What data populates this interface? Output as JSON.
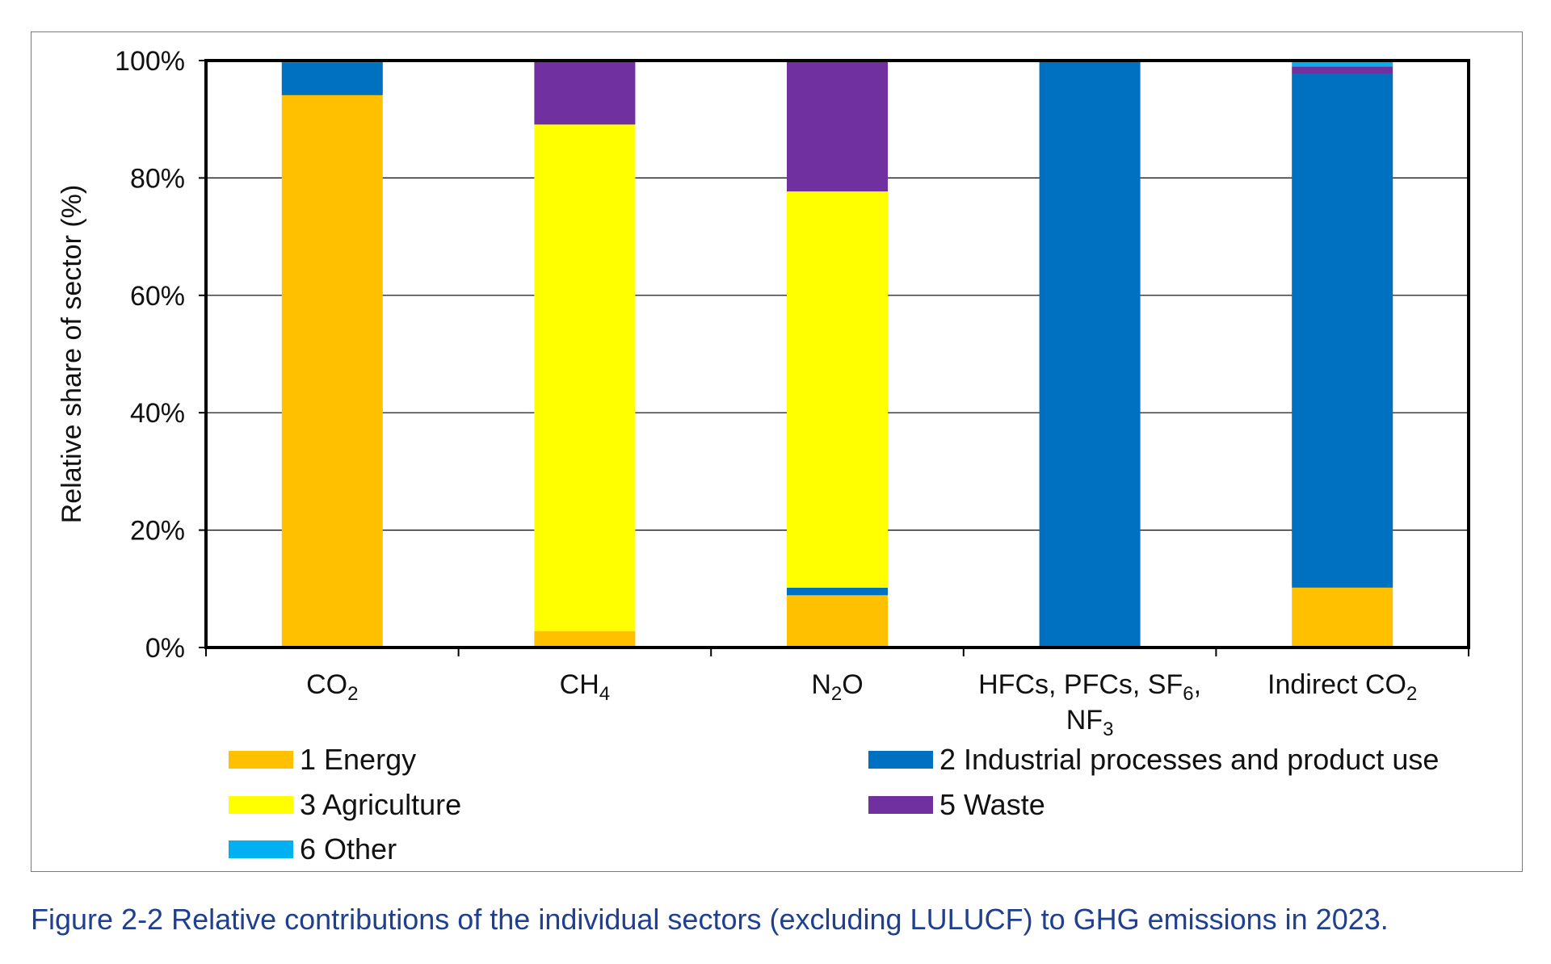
{
  "caption": "Figure 2-2 Relative contributions of the individual sectors (excluding LULUCF) to GHG emissions in 2023.",
  "chart_data": {
    "type": "bar",
    "stacked": true,
    "ylabel": "Relative share of sector (%)",
    "ylim": [
      0,
      100
    ],
    "yticks": [
      "0%",
      "20%",
      "40%",
      "60%",
      "80%",
      "100%"
    ],
    "grid": true,
    "legend_position": "bottom",
    "categories": [
      {
        "base": "CO",
        "sub": "2"
      },
      {
        "base": "CH",
        "sub": "4"
      },
      {
        "base": "N",
        "sub": "2",
        "tail": "O"
      },
      {
        "base": "HFCs, PFCs, SF",
        "sub": "6",
        "tail": ",",
        "line2_base": "NF",
        "line2_sub": "3"
      },
      {
        "base": "Indirect CO",
        "sub": "2"
      }
    ],
    "series": [
      {
        "name": "1 Energy",
        "color": "#FFC000",
        "values": [
          94.1,
          2.8,
          8.9,
          0.0,
          10.2
        ]
      },
      {
        "name": "2 Industrial processes and product use",
        "color": "#0070C0",
        "values": [
          5.6,
          0.0,
          1.3,
          100.0,
          87.6
        ]
      },
      {
        "name": "3 Agriculture",
        "color": "#FFFF00",
        "values": [
          0.0,
          86.3,
          67.5,
          0.0,
          0.0
        ]
      },
      {
        "name": "5 Waste",
        "color": "#7030A0",
        "values": [
          0.1,
          10.9,
          22.3,
          0.0,
          1.2
        ]
      },
      {
        "name": "6 Other",
        "color": "#00B0F0",
        "values": [
          0.2,
          0.0,
          0.0,
          0.0,
          1.0
        ]
      }
    ]
  }
}
